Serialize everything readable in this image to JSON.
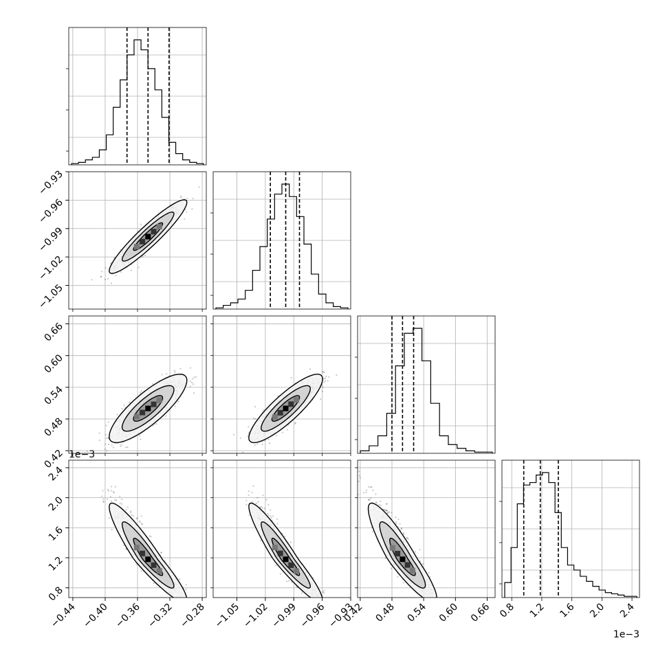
{
  "chart_data": {
    "type": "corner",
    "parameters": [
      {
        "name": "",
        "range": [
          -0.445,
          -0.275
        ],
        "ticks": [
          -0.44,
          -0.4,
          -0.36,
          -0.32,
          -0.28
        ],
        "tick_labels": [
          "−0.44",
          "−0.40",
          "−0.36",
          "−0.32",
          "−0.28"
        ],
        "quantiles": [
          -0.373,
          -0.347,
          -0.321
        ],
        "offset_label": ""
      },
      {
        "name": "",
        "range": [
          -1.075,
          -0.93
        ],
        "ticks": [
          -1.05,
          -1.02,
          -0.99,
          -0.96,
          -0.93
        ],
        "tick_labels": [
          "−1.05",
          "−1.02",
          "−0.99",
          "−0.96",
          "−0.93"
        ],
        "quantiles": [
          -1.0147,
          -0.9985,
          -0.984
        ],
        "offset_label": ""
      },
      {
        "name": "",
        "range": [
          0.415,
          0.675
        ],
        "ticks": [
          0.42,
          0.48,
          0.54,
          0.6,
          0.66
        ],
        "tick_labels": [
          "0.42",
          "0.48",
          "0.54",
          "0.60",
          "0.66"
        ],
        "quantiles": [
          0.48,
          0.5,
          0.521
        ],
        "offset_label": ""
      },
      {
        "name": "",
        "range": [
          0.67,
          2.5
        ],
        "ticks": [
          0.8,
          1.2,
          1.6,
          2.0,
          2.4
        ],
        "tick_labels": [
          "0.8",
          "1.2",
          "1.6",
          "2.0",
          "2.4"
        ],
        "quantiles": [
          0.96,
          1.18,
          1.42
        ],
        "offset_label": "1e−3"
      }
    ],
    "histograms": [
      [
        0.01,
        0.02,
        0.04,
        0.06,
        0.12,
        0.24,
        0.46,
        0.68,
        0.88,
        1.0,
        0.92,
        0.77,
        0.6,
        0.38,
        0.18,
        0.09,
        0.04,
        0.02,
        0.01
      ],
      [
        0.01,
        0.03,
        0.05,
        0.08,
        0.15,
        0.31,
        0.5,
        0.72,
        0.92,
        1.0,
        0.9,
        0.74,
        0.52,
        0.28,
        0.12,
        0.05,
        0.02,
        0.01
      ],
      [
        0.02,
        0.06,
        0.14,
        0.32,
        0.7,
        0.96,
        1.0,
        0.74,
        0.4,
        0.14,
        0.07,
        0.04,
        0.02,
        0.01,
        0.01
      ],
      [
        0.12,
        0.4,
        0.75,
        0.9,
        0.92,
        0.98,
        1.0,
        0.92,
        0.68,
        0.4,
        0.26,
        0.22,
        0.17,
        0.13,
        0.09,
        0.06,
        0.04,
        0.03,
        0.02,
        0.01,
        0.01
      ]
    ],
    "pairs": [
      {
        "x": 0,
        "y": 1,
        "mean": [
          -0.347,
          -0.9985
        ],
        "sd": [
          0.02,
          0.0162
        ],
        "corr": 0.93
      },
      {
        "x": 0,
        "y": 2,
        "mean": [
          -0.347,
          0.5
        ],
        "sd": [
          0.02,
          0.027
        ],
        "corr": 0.82
      },
      {
        "x": 1,
        "y": 2,
        "mean": [
          -0.9985,
          0.5
        ],
        "sd": [
          0.0162,
          0.027
        ],
        "corr": 0.86
      },
      {
        "x": 0,
        "y": 3,
        "mean": [
          -0.347,
          1.18
        ],
        "sd": [
          0.02,
          0.24
        ],
        "corr": -0.93
      },
      {
        "x": 1,
        "y": 3,
        "mean": [
          -0.9985,
          1.18
        ],
        "sd": [
          0.0162,
          0.24
        ],
        "corr": -0.94
      },
      {
        "x": 2,
        "y": 3,
        "mean": [
          0.5,
          1.18
        ],
        "sd": [
          0.027,
          0.24
        ],
        "corr": -0.9
      }
    ],
    "grid": true
  }
}
